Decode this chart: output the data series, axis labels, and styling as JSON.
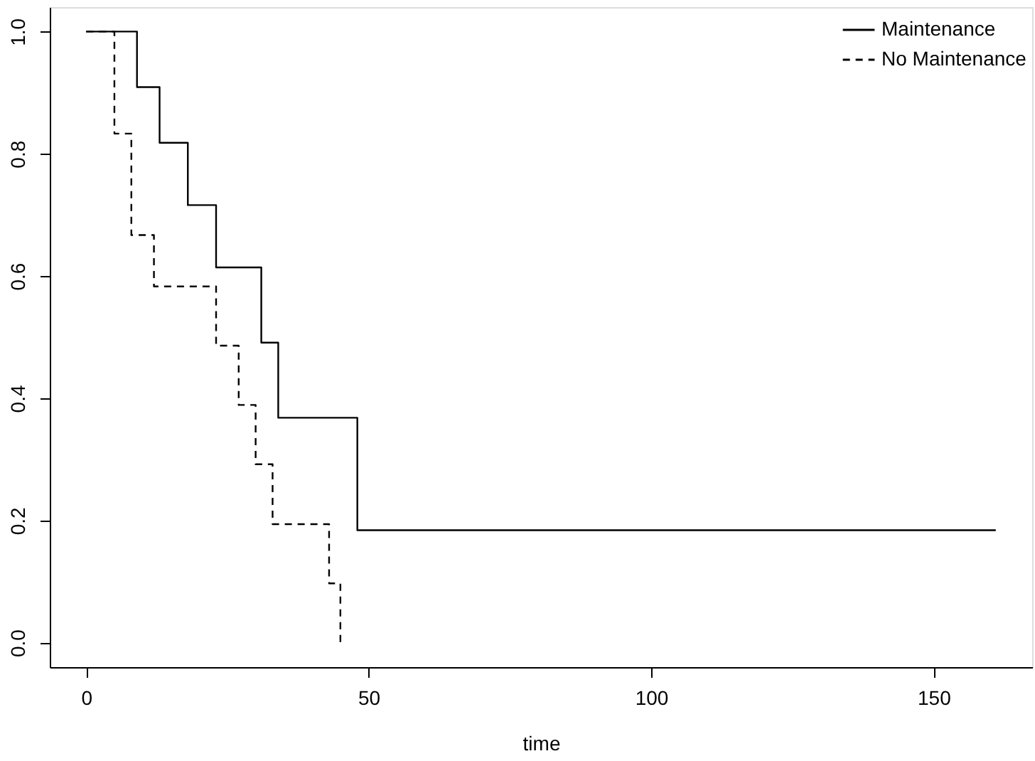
{
  "chart_data": {
    "type": "step",
    "xlabel": "time",
    "xlim": [
      -6.44,
      167.44
    ],
    "ylim": [
      -0.04,
      1.04
    ],
    "xticks": [
      0,
      50,
      100,
      150
    ],
    "yticks": [
      {
        "value": 0,
        "label": "0.0"
      },
      {
        "value": 0.2,
        "label": "0.2"
      },
      {
        "value": 0.4,
        "label": "0.4"
      },
      {
        "value": 0.6,
        "label": "0.6"
      },
      {
        "value": 0.8,
        "label": "0.8"
      },
      {
        "value": 1,
        "label": "1.0"
      }
    ],
    "grid": false,
    "legend": "top right",
    "marker": "none",
    "series": [
      {
        "name": "Maintenance",
        "color": "#000000",
        "line_style": "solid",
        "x": [
          0,
          9,
          13,
          18,
          23,
          31,
          34,
          48,
          161
        ],
        "values": [
          1,
          0.909,
          0.818,
          0.716,
          0.614,
          0.491,
          0.368,
          0.184,
          0.184
        ]
      },
      {
        "name": "No Maintenance",
        "color": "#000000",
        "line_style": "dashed",
        "x": [
          0,
          5,
          8,
          12,
          23,
          27,
          30,
          33,
          43,
          45
        ],
        "values": [
          1,
          0.833,
          0.667,
          0.583,
          0.486,
          0.389,
          0.292,
          0.194,
          0.097,
          0
        ]
      }
    ]
  }
}
